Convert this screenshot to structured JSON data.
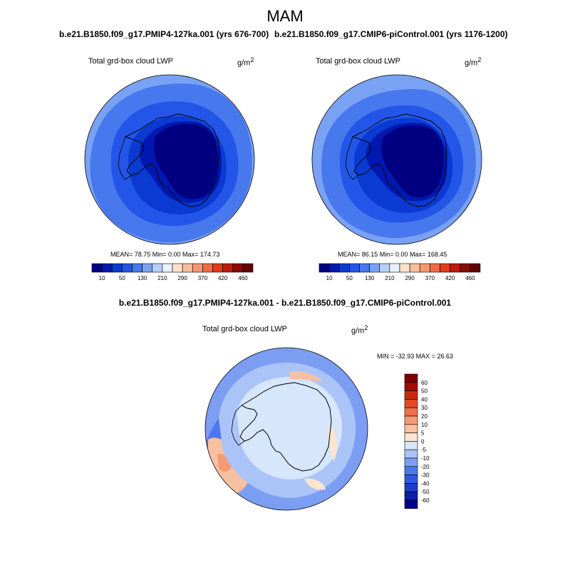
{
  "season": "MAM",
  "variable": "Total grd-box cloud LWP",
  "units_base": "g/m",
  "units_exp": "2",
  "panels": [
    {
      "title": "b.e21.B1850.f09_g17.PMIP4-127ka.001 (yrs 676-700)",
      "stats": "MEAN=  78.75  Min=   0.00  Max= 174.73"
    },
    {
      "title": "b.e21.B1850.f09_g17.CMIP6-piControl.001 (yrs 1176-1200)",
      "stats": "MEAN=  86.15  Min=   0.00  Max= 168.45"
    }
  ],
  "diff_title": "b.e21.B1850.f09_g17.PMIP4-127ka.001 - b.e21.B1850.f09_g17.CMIP6-piControl.001",
  "diff_stats": "MIN = -32.93 MAX =  26.63",
  "colorbar_abs": {
    "colors": [
      "#000080",
      "#0018b0",
      "#0a3ad2",
      "#2356e8",
      "#4878ee",
      "#7aa2f4",
      "#b6cffa",
      "#e8f1fc",
      "#fbe1cc",
      "#f7bc9a",
      "#f39670",
      "#ee6b44",
      "#e43b1a",
      "#bd1a0a",
      "#8a0a04",
      "#650000"
    ],
    "tick_labels": [
      "10",
      "50",
      "130",
      "210",
      "290",
      "370",
      "420",
      "460"
    ]
  },
  "colorbar_diff": {
    "colors": [
      "#00008b",
      "#0a1ea8",
      "#1f3cc8",
      "#3358e0",
      "#4c78ec",
      "#7c9ef2",
      "#abc4f8",
      "#d6e6fb",
      "#fbe4d0",
      "#f7c0a0",
      "#f39a74",
      "#ee704a",
      "#e54a26",
      "#cc2a10",
      "#a00c04",
      "#7e0000"
    ],
    "tick_labels": [
      "60",
      "50",
      "40",
      "30",
      "20",
      "10",
      "5",
      "0",
      "-5",
      "-10",
      "-20",
      "-30",
      "-40",
      "-50",
      "-60"
    ]
  },
  "map_colors": {
    "abs_ring_light": "#7aa2f4",
    "abs_ring_mid": "#4878ee",
    "abs_ring_dark": "#2356e8",
    "abs_core": "#0a3ad2",
    "abs_core2": "#0018b0",
    "abs_center": "#000080",
    "diff_base": "#d6e6fb",
    "diff_blue1": "#abc4f8",
    "diff_blue2": "#7c9ef2",
    "diff_blue3": "#4c78ec",
    "diff_red1": "#fbe4d0",
    "diff_red2": "#f7c0a0",
    "diff_red3": "#f39a74"
  }
}
